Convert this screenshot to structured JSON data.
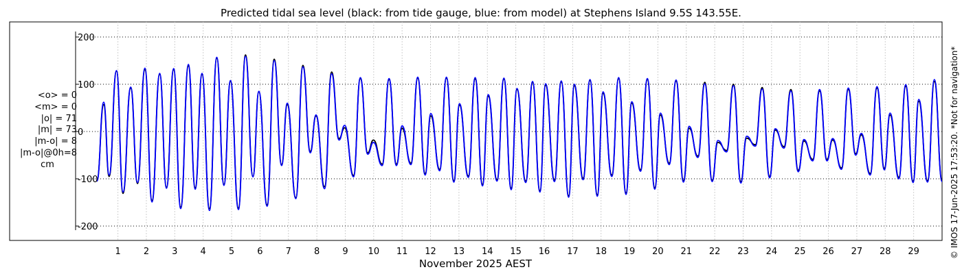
{
  "chart_data": {
    "type": "line",
    "title": "Predicted tidal sea level (black: from tide gauge, blue: from model) at Stephens Island 9.5S 143.55E.",
    "xlabel": "November 2025 AEST",
    "ylabel": "",
    "xlim": [
      0.26,
      30.0
    ],
    "ylim": [
      -210,
      210
    ],
    "y_ticks": [
      -200,
      -100,
      0,
      100,
      200
    ],
    "x_ticks": [
      "1",
      "2",
      "3",
      "4",
      "5",
      "6",
      "7",
      "8",
      "9",
      "10",
      "11",
      "12",
      "13",
      "14",
      "15",
      "16",
      "17",
      "18",
      "19",
      "20",
      "21",
      "22",
      "23",
      "24",
      "25",
      "26",
      "27",
      "28",
      "29"
    ],
    "grid": true,
    "series": [
      {
        "color": "#000000",
        "points": [
          [
            0.26,
            -103
          ],
          [
            0.5,
            57
          ],
          [
            0.69,
            -95
          ],
          [
            0.95,
            128
          ],
          [
            1.18,
            -131
          ],
          [
            1.45,
            92
          ],
          [
            1.69,
            -110
          ],
          [
            1.95,
            131
          ],
          [
            2.2,
            -146
          ],
          [
            2.47,
            121
          ],
          [
            2.71,
            -118
          ],
          [
            2.96,
            131
          ],
          [
            3.21,
            -160
          ],
          [
            3.48,
            139
          ],
          [
            3.72,
            -119
          ],
          [
            3.96,
            121
          ],
          [
            4.22,
            -163
          ],
          [
            4.48,
            155
          ],
          [
            4.73,
            -112
          ],
          [
            4.96,
            106
          ],
          [
            5.24,
            -162
          ],
          [
            5.49,
            162
          ],
          [
            5.75,
            -95
          ],
          [
            5.96,
            84
          ],
          [
            6.25,
            -155
          ],
          [
            6.5,
            153
          ],
          [
            6.76,
            -70
          ],
          [
            6.96,
            57
          ],
          [
            7.26,
            -140
          ],
          [
            7.51,
            140
          ],
          [
            7.77,
            -42
          ],
          [
            7.97,
            33
          ],
          [
            8.27,
            -117
          ],
          [
            8.52,
            126
          ],
          [
            8.78,
            -15
          ],
          [
            8.98,
            8
          ],
          [
            9.29,
            -93
          ],
          [
            9.53,
            112
          ],
          [
            9.79,
            -45
          ],
          [
            9.99,
            -18
          ],
          [
            10.3,
            -69
          ],
          [
            10.54,
            110
          ],
          [
            10.8,
            -69
          ],
          [
            11.0,
            7
          ],
          [
            11.31,
            -67
          ],
          [
            11.55,
            113
          ],
          [
            11.81,
            -89
          ],
          [
            12.01,
            33
          ],
          [
            12.32,
            -80
          ],
          [
            12.56,
            113
          ],
          [
            12.82,
            -104
          ],
          [
            13.02,
            56
          ],
          [
            13.33,
            -94
          ],
          [
            13.57,
            111
          ],
          [
            13.83,
            -112
          ],
          [
            14.03,
            75
          ],
          [
            14.34,
            -102
          ],
          [
            14.58,
            111
          ],
          [
            14.84,
            -120
          ],
          [
            15.04,
            89
          ],
          [
            15.35,
            -105
          ],
          [
            15.59,
            104
          ],
          [
            15.85,
            -125
          ],
          [
            16.05,
            98
          ],
          [
            16.36,
            -103
          ],
          [
            16.6,
            105
          ],
          [
            16.86,
            -136
          ],
          [
            17.06,
            97
          ],
          [
            17.37,
            -99
          ],
          [
            17.61,
            108
          ],
          [
            17.87,
            -134
          ],
          [
            18.07,
            81
          ],
          [
            18.38,
            -92
          ],
          [
            18.62,
            112
          ],
          [
            18.88,
            -130
          ],
          [
            19.08,
            60
          ],
          [
            19.39,
            -81
          ],
          [
            19.63,
            110
          ],
          [
            19.89,
            -119
          ],
          [
            20.09,
            35
          ],
          [
            20.4,
            -67
          ],
          [
            20.64,
            107
          ],
          [
            20.9,
            -104
          ],
          [
            21.1,
            7
          ],
          [
            21.41,
            -52
          ],
          [
            21.65,
            104
          ],
          [
            21.91,
            -103
          ],
          [
            22.11,
            -23
          ],
          [
            22.42,
            -40
          ],
          [
            22.66,
            100
          ],
          [
            22.92,
            -106
          ],
          [
            23.12,
            -14
          ],
          [
            23.43,
            -28
          ],
          [
            23.67,
            93
          ],
          [
            23.93,
            -95
          ],
          [
            24.13,
            3
          ],
          [
            24.44,
            -32
          ],
          [
            24.68,
            89
          ],
          [
            24.94,
            -82
          ],
          [
            25.14,
            -20
          ],
          [
            25.45,
            -59
          ],
          [
            25.69,
            86
          ],
          [
            25.95,
            -59
          ],
          [
            26.15,
            -18
          ],
          [
            26.46,
            -77
          ],
          [
            26.7,
            89
          ],
          [
            26.96,
            -47
          ],
          [
            27.16,
            -7
          ],
          [
            27.47,
            -89
          ],
          [
            27.71,
            92
          ],
          [
            27.97,
            -78
          ],
          [
            28.17,
            35
          ],
          [
            28.48,
            -97
          ],
          [
            28.72,
            96
          ],
          [
            28.98,
            -105
          ],
          [
            29.18,
            64
          ],
          [
            29.49,
            -104
          ],
          [
            29.73,
            106
          ],
          [
            30.0,
            -103
          ]
        ]
      },
      {
        "color": "#0000ff",
        "points": [
          [
            0.26,
            -105
          ],
          [
            0.5,
            62
          ],
          [
            0.69,
            -92
          ],
          [
            0.95,
            129
          ],
          [
            1.18,
            -128
          ],
          [
            1.45,
            94
          ],
          [
            1.69,
            -108
          ],
          [
            1.95,
            134
          ],
          [
            2.2,
            -149
          ],
          [
            2.47,
            123
          ],
          [
            2.71,
            -120
          ],
          [
            2.96,
            133
          ],
          [
            3.21,
            -163
          ],
          [
            3.48,
            142
          ],
          [
            3.72,
            -122
          ],
          [
            3.96,
            123
          ],
          [
            4.22,
            -167
          ],
          [
            4.48,
            157
          ],
          [
            4.73,
            -114
          ],
          [
            4.96,
            108
          ],
          [
            5.24,
            -165
          ],
          [
            5.49,
            159
          ],
          [
            5.75,
            -96
          ],
          [
            5.96,
            85
          ],
          [
            6.25,
            -158
          ],
          [
            6.5,
            150
          ],
          [
            6.76,
            -72
          ],
          [
            6.96,
            60
          ],
          [
            7.26,
            -142
          ],
          [
            7.51,
            137
          ],
          [
            7.77,
            -45
          ],
          [
            7.97,
            35
          ],
          [
            8.27,
            -121
          ],
          [
            8.52,
            122
          ],
          [
            8.78,
            -18
          ],
          [
            8.98,
            13
          ],
          [
            9.29,
            -96
          ],
          [
            9.53,
            114
          ],
          [
            9.79,
            -48
          ],
          [
            9.99,
            -23
          ],
          [
            10.3,
            -72
          ],
          [
            10.54,
            112
          ],
          [
            10.8,
            -72
          ],
          [
            11.0,
            12
          ],
          [
            11.31,
            -70
          ],
          [
            11.55,
            115
          ],
          [
            11.81,
            -92
          ],
          [
            12.01,
            38
          ],
          [
            12.32,
            -83
          ],
          [
            12.56,
            115
          ],
          [
            12.82,
            -107
          ],
          [
            13.02,
            59
          ],
          [
            13.33,
            -97
          ],
          [
            13.57,
            114
          ],
          [
            13.83,
            -115
          ],
          [
            14.03,
            78
          ],
          [
            14.34,
            -105
          ],
          [
            14.58,
            113
          ],
          [
            14.84,
            -123
          ],
          [
            15.04,
            91
          ],
          [
            15.35,
            -108
          ],
          [
            15.59,
            106
          ],
          [
            15.85,
            -128
          ],
          [
            16.05,
            101
          ],
          [
            16.36,
            -106
          ],
          [
            16.6,
            107
          ],
          [
            16.86,
            -139
          ],
          [
            17.06,
            100
          ],
          [
            17.37,
            -102
          ],
          [
            17.61,
            110
          ],
          [
            17.87,
            -137
          ],
          [
            18.07,
            84
          ],
          [
            18.38,
            -95
          ],
          [
            18.62,
            114
          ],
          [
            18.88,
            -133
          ],
          [
            19.08,
            63
          ],
          [
            19.39,
            -84
          ],
          [
            19.63,
            112
          ],
          [
            19.89,
            -122
          ],
          [
            20.09,
            39
          ],
          [
            20.4,
            -70
          ],
          [
            20.64,
            109
          ],
          [
            20.9,
            -107
          ],
          [
            21.1,
            11
          ],
          [
            21.41,
            -55
          ],
          [
            21.65,
            101
          ],
          [
            21.91,
            -106
          ],
          [
            22.11,
            -19
          ],
          [
            22.42,
            -43
          ],
          [
            22.66,
            97
          ],
          [
            22.92,
            -109
          ],
          [
            23.12,
            -10
          ],
          [
            23.43,
            -31
          ],
          [
            23.67,
            90
          ],
          [
            23.93,
            -98
          ],
          [
            24.13,
            6
          ],
          [
            24.44,
            -35
          ],
          [
            24.68,
            86
          ],
          [
            24.94,
            -85
          ],
          [
            25.14,
            -17
          ],
          [
            25.45,
            -62
          ],
          [
            25.69,
            89
          ],
          [
            25.95,
            -62
          ],
          [
            26.15,
            -15
          ],
          [
            26.46,
            -80
          ],
          [
            26.7,
            92
          ],
          [
            26.96,
            -50
          ],
          [
            27.16,
            -4
          ],
          [
            27.47,
            -92
          ],
          [
            27.71,
            95
          ],
          [
            27.97,
            -81
          ],
          [
            28.17,
            39
          ],
          [
            28.48,
            -100
          ],
          [
            28.72,
            99
          ],
          [
            28.98,
            -108
          ],
          [
            29.18,
            68
          ],
          [
            29.49,
            -107
          ],
          [
            29.73,
            110
          ],
          [
            30.0,
            -106
          ]
        ]
      }
    ]
  },
  "stats": {
    "mean_obs": "<o> = 0",
    "mean_model": "<m> = 0",
    "abs_obs": "|o| = 71",
    "abs_model": "|m| = 73",
    "abs_diff": "|m-o| = 8",
    "abs_diff_0h": "|m-o|@0h=8",
    "unit": "cm"
  },
  "credit": "© IMOS 17-Jun-2025 17:53:20. *Not for navigation*"
}
